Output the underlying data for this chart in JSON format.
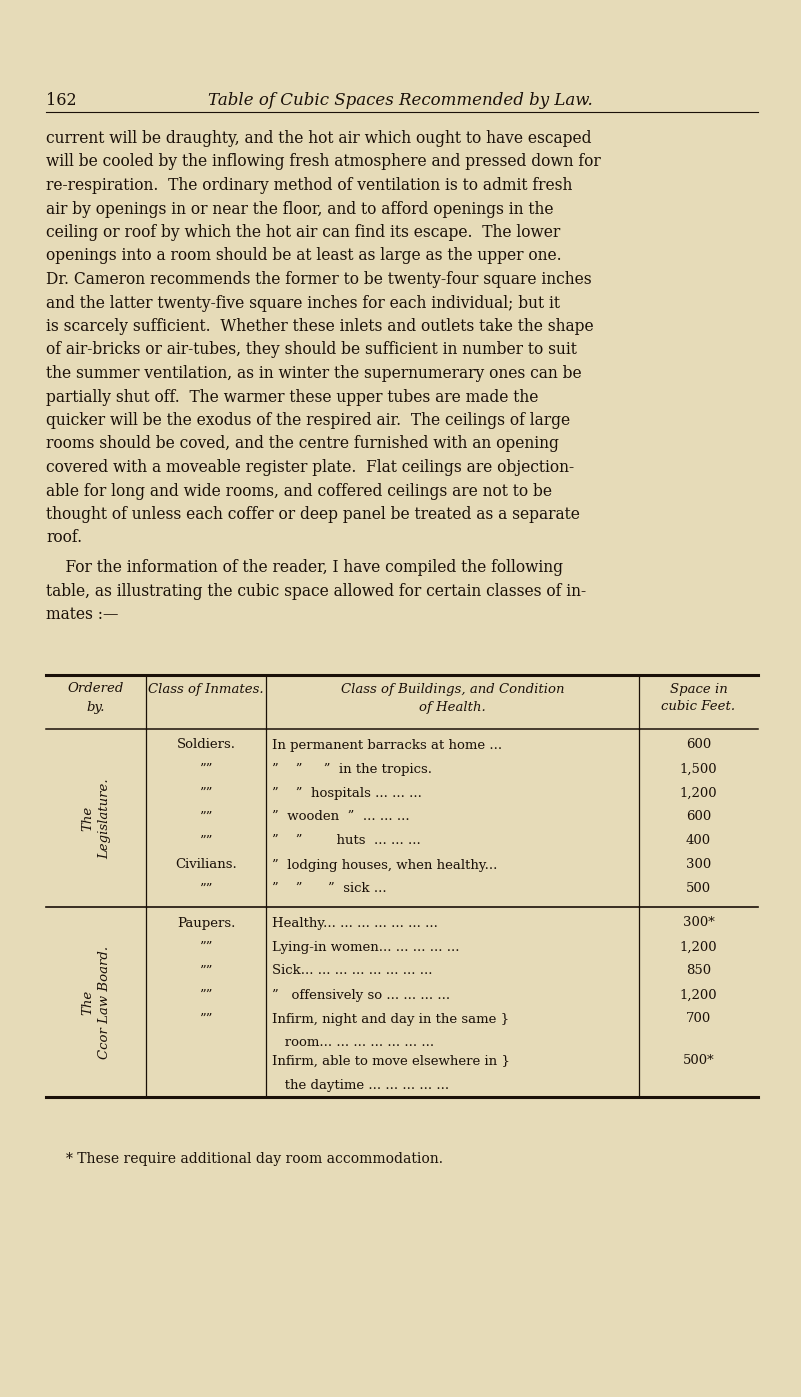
{
  "page_num": "162",
  "page_title": "Table of Cubic Spaces Recommended by Law.",
  "bg_color": "#e6dbb8",
  "text_color": "#1a1008",
  "body_lines_1": [
    "current will be draughty, and the hot air which ought to have escaped",
    "will be cooled by the inflowing fresh atmosphere and pressed down for",
    "re-respiration.  The ordinary method of ventilation is to admit fresh",
    "air by openings in or near the floor, and to afford openings in the",
    "ceiling or roof by which the hot air can find its escape.  The lower",
    "openings into a room should be at least as large as the upper one.",
    "Dr. Cameron recommends the former to be twenty-four square inches",
    "and the latter twenty-five square inches for each individual; but it",
    "is scarcely sufficient.  Whether these inlets and outlets take the shape",
    "of air-bricks or air-tubes, they should be sufficient in number to suit",
    "the summer ventilation, as in winter the supernumerary ones can be",
    "partially shut off.  The warmer these upper tubes are made the",
    "quicker will be the exodus of the respired air.  The ceilings of large",
    "rooms should be coved, and the centre furnished with an opening",
    "covered with a moveable register plate.  Flat ceilings are objection-",
    "able for long and wide rooms, and coffered ceilings are not to be",
    "thought of unless each coffer or deep panel be treated as a separate",
    "roof."
  ],
  "body_lines_2": [
    "    For the information of the reader, I have compiled the following",
    "table, as illustrating the cubic space allowed for certain classes of in-",
    "mates :—"
  ],
  "table_header_col0": "Ordered\nby.",
  "table_header_col1": "Class of Inmates.",
  "table_header_col2": "Class of Buildings, and Condition\nof Health.",
  "table_header_col3": "Space in\ncubic Feet.",
  "section1_label": "The\nLegislature.",
  "section1_rows": [
    [
      "Soldiers.",
      "In permanent barracks at home ...",
      "600"
    ],
    [
      "””",
      "”    ”     ”  in the tropics.",
      "1,500"
    ],
    [
      "””",
      "”    ”  hospitals ... ... ...",
      "1,200"
    ],
    [
      "””",
      "”  wooden  ”  ... ... ...",
      "600"
    ],
    [
      "””",
      "”    ”        huts  ... ... ...",
      "400"
    ],
    [
      "Civilians.",
      "”  lodging houses, when healthy...",
      "300"
    ],
    [
      "””",
      "”    ”      ”  sick ...",
      "500"
    ]
  ],
  "section2_label": "The\nCcor Law Board.",
  "section2_rows": [
    [
      "Paupers.",
      "Healthy... ... ... ... ... ... ...",
      "300*"
    ],
    [
      "””",
      "Lying-in women... ... ... ... ...",
      "1,200"
    ],
    [
      "””",
      "Sick... ... ... ... ... ... ... ...",
      "850"
    ],
    [
      "””",
      "”   offensively so ... ... ... ...",
      "1,200"
    ],
    [
      "””",
      "Infirm, night and day in the same }",
      "700"
    ],
    [
      "",
      "   room... ... ... ... ... ... ...",
      ""
    ],
    [
      "",
      "Infirm, able to move elsewhere in }",
      "500*"
    ],
    [
      "",
      "   the daytime ... ... ... ... ...",
      ""
    ]
  ],
  "footnote": "* These require additional day room accommodation."
}
